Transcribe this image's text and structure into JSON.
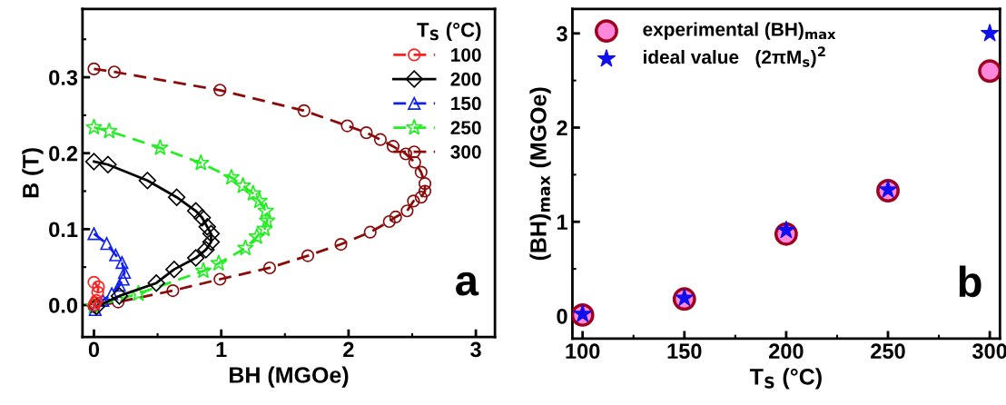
{
  "chart_data": [
    {
      "type": "line",
      "xlabel": "BH (MGOe)",
      "ylabel": "B (T)",
      "legend_title": "T$_{S}$ (°C)",
      "legend": "top right",
      "grid": false,
      "xlim": [
        -0.09,
        3.15
      ],
      "ylim": [
        -0.042,
        0.39
      ],
      "xticks": [
        0,
        {
          "value": 0.5,
          "label": null
        },
        1,
        {
          "value": 1.5,
          "label": null
        },
        2,
        {
          "value": 2.5,
          "label": null
        },
        3
      ],
      "yticks": [
        {
          "value": 0,
          "label": "0.0"
        },
        {
          "value": 0.05,
          "label": null
        },
        0.1,
        {
          "value": 0.15,
          "label": null
        },
        0.2,
        {
          "value": 0.25,
          "label": null
        },
        0.3,
        {
          "value": 0.35,
          "label": null
        }
      ],
      "annotations": [
        "a"
      ],
      "series": [
        {
          "name": "100",
          "color": "#ff2020",
          "marker": "circle",
          "line_style": "dashed",
          "x": [
            0,
            0.035,
            0.03,
            0.02,
            0.01,
            0
          ],
          "values": [
            0.03,
            0.024,
            0.017,
            0.006,
            0.003,
            0
          ]
        },
        {
          "name": "200",
          "color": "#000000",
          "marker": "diamond",
          "line_style": "solid",
          "x": [
            0,
            0.11,
            0.42,
            0.65,
            0.8,
            0.85,
            0.89,
            0.92,
            0.92,
            0.88,
            0.8,
            0.63,
            0.49,
            0.2,
            0.02
          ],
          "values": [
            0.189,
            0.185,
            0.164,
            0.142,
            0.124,
            0.115,
            0.103,
            0.094,
            0.083,
            0.073,
            0.062,
            0.047,
            0.029,
            0.012,
            -0.002
          ]
        },
        {
          "name": "150",
          "color": "#1020ee",
          "marker": "triangle",
          "line_style": "dashed",
          "x": [
            0,
            0.1,
            0.17,
            0.22,
            0.24,
            0.23,
            0.2,
            0.14,
            0.07,
            0.01
          ],
          "values": [
            0.094,
            0.081,
            0.066,
            0.056,
            0.043,
            0.034,
            0.026,
            0.015,
            0.006,
            -0.006
          ]
        },
        {
          "name": "250",
          "color": "#22ee22",
          "marker": "star",
          "line_style": "dashed",
          "x": [
            0,
            0.12,
            0.52,
            0.84,
            1.08,
            1.17,
            1.25,
            1.3,
            1.35,
            1.36,
            1.34,
            1.28,
            1.19,
            0.98,
            0.86,
            0.35,
            0
          ],
          "values": [
            0.234,
            0.229,
            0.207,
            0.187,
            0.168,
            0.157,
            0.147,
            0.137,
            0.124,
            0.111,
            0.1,
            0.09,
            0.075,
            0.055,
            0.045,
            0.015,
            -0.002
          ]
        },
        {
          "name": "300",
          "color": "#8b0a0a",
          "marker": "circle",
          "line_style": "dashed",
          "x": [
            0,
            0.16,
            0.99,
            1.65,
            1.99,
            2.14,
            2.25,
            2.35,
            2.45,
            2.52,
            2.57,
            2.6,
            2.6,
            2.57,
            2.51,
            2.46,
            2.37,
            2.32,
            2.17,
            1.94,
            1.68,
            1.38,
            0.99,
            0.62,
            0.19,
            0
          ],
          "values": [
            0.311,
            0.307,
            0.283,
            0.256,
            0.236,
            0.227,
            0.218,
            0.209,
            0.199,
            0.188,
            0.175,
            0.16,
            0.15,
            0.142,
            0.137,
            0.124,
            0.116,
            0.11,
            0.096,
            0.08,
            0.065,
            0.049,
            0.034,
            0.019,
            0.004,
            -0.002
          ]
        }
      ]
    },
    {
      "type": "scatter",
      "xlabel": "T$_{S}$ (°C)",
      "ylabel": "(BH)$_{max}$ (MGOe)",
      "legend": "top left",
      "grid": false,
      "xlim": [
        95,
        305
      ],
      "ylim": [
        -0.24,
        3.26
      ],
      "xticks": [
        100,
        {
          "value": 125,
          "label": null
        },
        150,
        {
          "value": 175,
          "label": null
        },
        200,
        {
          "value": 225,
          "label": null
        },
        250,
        {
          "value": 275,
          "label": null
        },
        300
      ],
      "yticks": [
        0,
        {
          "value": 0.5,
          "label": null
        },
        1,
        {
          "value": 1.5,
          "label": null
        },
        2,
        {
          "value": 2.5,
          "label": null
        },
        3
      ],
      "annotations": [
        "b"
      ],
      "x": [
        100,
        150,
        200,
        250,
        300
      ],
      "series": [
        {
          "name": "experimental (BH)$_{max}$",
          "color": "#ff88dd",
          "marker": "circle",
          "values": [
            0.01,
            0.18,
            0.87,
            1.33,
            2.6
          ]
        },
        {
          "name": "ideal value   (2πM$_{s}$)$^{2}$",
          "color": "#1010ee",
          "marker": "star",
          "values": [
            0.02,
            0.19,
            0.91,
            1.34,
            3.0
          ]
        }
      ]
    }
  ]
}
